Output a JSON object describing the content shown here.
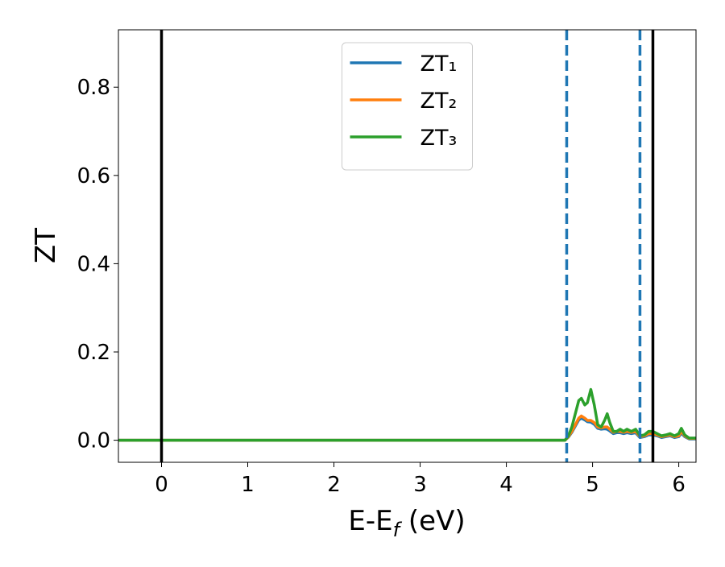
{
  "chart_data": {
    "type": "line",
    "xlabel": [
      "E-E",
      "f",
      " (eV)"
    ],
    "ylabel": "ZT",
    "x": [
      -0.5,
      4.6,
      4.68,
      4.72,
      4.76,
      4.8,
      4.84,
      4.87,
      4.91,
      4.94,
      4.98,
      5.02,
      5.06,
      5.1,
      5.14,
      5.17,
      5.2,
      5.24,
      5.28,
      5.32,
      5.36,
      5.4,
      5.45,
      5.5,
      5.55,
      5.6,
      5.65,
      5.7,
      5.75,
      5.8,
      5.85,
      5.9,
      5.95,
      6.0,
      6.03,
      6.07,
      6.12,
      6.2
    ],
    "series": [
      {
        "name": "ZT₁",
        "color": "#1f77b4",
        "values": [
          0,
          0,
          0,
          0.007,
          0.018,
          0.032,
          0.046,
          0.05,
          0.046,
          0.042,
          0.041,
          0.036,
          0.027,
          0.025,
          0.026,
          0.025,
          0.021,
          0.015,
          0.017,
          0.017,
          0.015,
          0.017,
          0.015,
          0.017,
          0.006,
          0.008,
          0.012,
          0.012,
          0.01,
          0.006,
          0.008,
          0.01,
          0.006,
          0.008,
          0.016,
          0.008,
          0.003,
          0.003
        ]
      },
      {
        "name": "ZT₂",
        "color": "#ff7f0e",
        "values": [
          0,
          0,
          0,
          0.008,
          0.02,
          0.035,
          0.05,
          0.055,
          0.05,
          0.045,
          0.045,
          0.04,
          0.03,
          0.028,
          0.03,
          0.03,
          0.025,
          0.018,
          0.02,
          0.02,
          0.018,
          0.02,
          0.018,
          0.02,
          0.008,
          0.01,
          0.015,
          0.015,
          0.012,
          0.008,
          0.01,
          0.012,
          0.008,
          0.01,
          0.02,
          0.01,
          0.004,
          0.004
        ]
      },
      {
        "name": "ZT₃",
        "color": "#2ca02c",
        "values": [
          0,
          0,
          0,
          0.01,
          0.03,
          0.06,
          0.09,
          0.095,
          0.08,
          0.085,
          0.115,
          0.08,
          0.035,
          0.03,
          0.045,
          0.06,
          0.04,
          0.02,
          0.02,
          0.025,
          0.02,
          0.025,
          0.02,
          0.025,
          0.01,
          0.012,
          0.02,
          0.02,
          0.015,
          0.01,
          0.012,
          0.015,
          0.01,
          0.015,
          0.027,
          0.012,
          0.005,
          0.005
        ]
      }
    ],
    "vlines": [
      {
        "x": 0,
        "color": "#000000",
        "dashed": false
      },
      {
        "x": 5.7,
        "color": "#000000",
        "dashed": false
      },
      {
        "x": 4.7,
        "color": "#1f77b4",
        "dashed": true
      },
      {
        "x": 5.55,
        "color": "#1f77b4",
        "dashed": true
      }
    ],
    "xlim": [
      -0.5,
      6.2
    ],
    "ylim": [
      -0.05,
      0.93
    ],
    "xticks": [
      0,
      1,
      2,
      3,
      4,
      5,
      6
    ],
    "yticks": [
      {
        "value": 0,
        "label": "0.0"
      },
      0.2,
      0.4,
      0.6,
      0.8
    ],
    "legend": "upper center"
  }
}
